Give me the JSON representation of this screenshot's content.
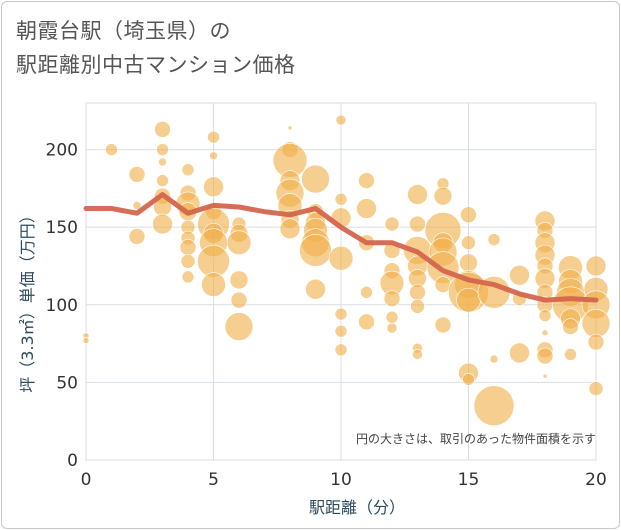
{
  "title_line1": "朝霞台駅（埼玉県）の",
  "title_line2": "駅距離別中古マンション価格",
  "chart_data": {
    "type": "scatter",
    "xlabel": "駅距離（分）",
    "ylabel": "坪（3.3㎡）単価（万円）",
    "xlim": [
      0,
      20
    ],
    "ylim": [
      0,
      230
    ],
    "xticks": [
      0,
      5,
      10,
      15,
      20
    ],
    "yticks": [
      0,
      50,
      100,
      150,
      200
    ],
    "grid": true,
    "note": "円の大きさは、取引のあった物件面積を示す",
    "colors": {
      "bubble": "#f0b04a",
      "line": "#d4654d",
      "grid": "#d8dde4"
    },
    "points": [
      {
        "x": 0,
        "y": 80,
        "s": 3
      },
      {
        "x": 0,
        "y": 77,
        "s": 3
      },
      {
        "x": 1,
        "y": 200,
        "s": 6
      },
      {
        "x": 2,
        "y": 184,
        "s": 8
      },
      {
        "x": 2,
        "y": 144,
        "s": 8
      },
      {
        "x": 2,
        "y": 164,
        "s": 4
      },
      {
        "x": 3,
        "y": 213,
        "s": 8
      },
      {
        "x": 3,
        "y": 200,
        "s": 6
      },
      {
        "x": 3,
        "y": 192,
        "s": 4
      },
      {
        "x": 3,
        "y": 180,
        "s": 6
      },
      {
        "x": 3,
        "y": 170,
        "s": 8
      },
      {
        "x": 3,
        "y": 163,
        "s": 9
      },
      {
        "x": 3,
        "y": 152,
        "s": 10
      },
      {
        "x": 4,
        "y": 187,
        "s": 6
      },
      {
        "x": 4,
        "y": 172,
        "s": 8
      },
      {
        "x": 4,
        "y": 165,
        "s": 12
      },
      {
        "x": 4,
        "y": 160,
        "s": 9
      },
      {
        "x": 4,
        "y": 150,
        "s": 7
      },
      {
        "x": 4,
        "y": 143,
        "s": 7
      },
      {
        "x": 4,
        "y": 137,
        "s": 8
      },
      {
        "x": 4,
        "y": 128,
        "s": 7
      },
      {
        "x": 4,
        "y": 118,
        "s": 6
      },
      {
        "x": 5,
        "y": 208,
        "s": 6
      },
      {
        "x": 5,
        "y": 196,
        "s": 4
      },
      {
        "x": 5,
        "y": 176,
        "s": 10
      },
      {
        "x": 5,
        "y": 160,
        "s": 8
      },
      {
        "x": 5,
        "y": 152,
        "s": 16
      },
      {
        "x": 5,
        "y": 146,
        "s": 10
      },
      {
        "x": 5,
        "y": 140,
        "s": 14
      },
      {
        "x": 5,
        "y": 128,
        "s": 16
      },
      {
        "x": 5,
        "y": 113,
        "s": 12
      },
      {
        "x": 6,
        "y": 152,
        "s": 7
      },
      {
        "x": 6,
        "y": 146,
        "s": 9
      },
      {
        "x": 6,
        "y": 140,
        "s": 12
      },
      {
        "x": 6,
        "y": 116,
        "s": 9
      },
      {
        "x": 6,
        "y": 103,
        "s": 8
      },
      {
        "x": 6,
        "y": 86,
        "s": 14
      },
      {
        "x": 8,
        "y": 214,
        "s": 2
      },
      {
        "x": 8,
        "y": 200,
        "s": 8
      },
      {
        "x": 8,
        "y": 193,
        "s": 17
      },
      {
        "x": 8,
        "y": 180,
        "s": 10
      },
      {
        "x": 8,
        "y": 172,
        "s": 14
      },
      {
        "x": 8,
        "y": 164,
        "s": 12
      },
      {
        "x": 8,
        "y": 155,
        "s": 9
      },
      {
        "x": 8,
        "y": 149,
        "s": 10
      },
      {
        "x": 9,
        "y": 181,
        "s": 14
      },
      {
        "x": 9,
        "y": 160,
        "s": 8
      },
      {
        "x": 9,
        "y": 153,
        "s": 10
      },
      {
        "x": 9,
        "y": 148,
        "s": 12
      },
      {
        "x": 9,
        "y": 140,
        "s": 14
      },
      {
        "x": 9,
        "y": 135,
        "s": 16
      },
      {
        "x": 9,
        "y": 110,
        "s": 10
      },
      {
        "x": 10,
        "y": 219,
        "s": 5
      },
      {
        "x": 10,
        "y": 168,
        "s": 6
      },
      {
        "x": 10,
        "y": 156,
        "s": 10
      },
      {
        "x": 10,
        "y": 130,
        "s": 12
      },
      {
        "x": 10,
        "y": 94,
        "s": 6
      },
      {
        "x": 10,
        "y": 83,
        "s": 6
      },
      {
        "x": 10,
        "y": 71,
        "s": 6
      },
      {
        "x": 11,
        "y": 180,
        "s": 8
      },
      {
        "x": 11,
        "y": 162,
        "s": 10
      },
      {
        "x": 11,
        "y": 140,
        "s": 8
      },
      {
        "x": 11,
        "y": 108,
        "s": 6
      },
      {
        "x": 11,
        "y": 89,
        "s": 8
      },
      {
        "x": 12,
        "y": 152,
        "s": 7
      },
      {
        "x": 12,
        "y": 135,
        "s": 8
      },
      {
        "x": 12,
        "y": 122,
        "s": 8
      },
      {
        "x": 12,
        "y": 114,
        "s": 12
      },
      {
        "x": 12,
        "y": 104,
        "s": 8
      },
      {
        "x": 12,
        "y": 92,
        "s": 6
      },
      {
        "x": 12,
        "y": 85,
        "s": 5
      },
      {
        "x": 13,
        "y": 171,
        "s": 10
      },
      {
        "x": 13,
        "y": 152,
        "s": 8
      },
      {
        "x": 13,
        "y": 135,
        "s": 14
      },
      {
        "x": 13,
        "y": 125,
        "s": 10
      },
      {
        "x": 13,
        "y": 117,
        "s": 9
      },
      {
        "x": 13,
        "y": 108,
        "s": 8
      },
      {
        "x": 13,
        "y": 99,
        "s": 7
      },
      {
        "x": 13,
        "y": 72,
        "s": 5
      },
      {
        "x": 13,
        "y": 68,
        "s": 5
      },
      {
        "x": 14,
        "y": 178,
        "s": 6
      },
      {
        "x": 14,
        "y": 170,
        "s": 9
      },
      {
        "x": 14,
        "y": 148,
        "s": 18
      },
      {
        "x": 14,
        "y": 140,
        "s": 10
      },
      {
        "x": 14,
        "y": 134,
        "s": 14
      },
      {
        "x": 14,
        "y": 124,
        "s": 16
      },
      {
        "x": 14,
        "y": 113,
        "s": 8
      },
      {
        "x": 14,
        "y": 87,
        "s": 8
      },
      {
        "x": 15,
        "y": 158,
        "s": 8
      },
      {
        "x": 15,
        "y": 140,
        "s": 7
      },
      {
        "x": 15,
        "y": 127,
        "s": 9
      },
      {
        "x": 15,
        "y": 113,
        "s": 14
      },
      {
        "x": 15,
        "y": 108,
        "s": 20
      },
      {
        "x": 15,
        "y": 103,
        "s": 12
      },
      {
        "x": 15,
        "y": 56,
        "s": 10
      },
      {
        "x": 15,
        "y": 52,
        "s": 6
      },
      {
        "x": 16,
        "y": 142,
        "s": 6
      },
      {
        "x": 16,
        "y": 108,
        "s": 16
      },
      {
        "x": 16,
        "y": 65,
        "s": 4
      },
      {
        "x": 16,
        "y": 35,
        "s": 20
      },
      {
        "x": 17,
        "y": 119,
        "s": 10
      },
      {
        "x": 17,
        "y": 104,
        "s": 7
      },
      {
        "x": 17,
        "y": 69,
        "s": 10
      },
      {
        "x": 18,
        "y": 154,
        "s": 10
      },
      {
        "x": 18,
        "y": 148,
        "s": 8
      },
      {
        "x": 18,
        "y": 140,
        "s": 10
      },
      {
        "x": 18,
        "y": 132,
        "s": 10
      },
      {
        "x": 18,
        "y": 125,
        "s": 8
      },
      {
        "x": 18,
        "y": 117,
        "s": 10
      },
      {
        "x": 18,
        "y": 108,
        "s": 8
      },
      {
        "x": 18,
        "y": 100,
        "s": 8
      },
      {
        "x": 18,
        "y": 93,
        "s": 6
      },
      {
        "x": 18,
        "y": 82,
        "s": 3
      },
      {
        "x": 18,
        "y": 71,
        "s": 8
      },
      {
        "x": 18,
        "y": 67,
        "s": 8
      },
      {
        "x": 18,
        "y": 54,
        "s": 2
      },
      {
        "x": 19,
        "y": 124,
        "s": 12
      },
      {
        "x": 19,
        "y": 115,
        "s": 12
      },
      {
        "x": 19,
        "y": 108,
        "s": 14
      },
      {
        "x": 19,
        "y": 100,
        "s": 18
      },
      {
        "x": 19,
        "y": 91,
        "s": 10
      },
      {
        "x": 19,
        "y": 86,
        "s": 8
      },
      {
        "x": 19,
        "y": 68,
        "s": 6
      },
      {
        "x": 20,
        "y": 125,
        "s": 10
      },
      {
        "x": 20,
        "y": 110,
        "s": 12
      },
      {
        "x": 20,
        "y": 100,
        "s": 14
      },
      {
        "x": 20,
        "y": 88,
        "s": 14
      },
      {
        "x": 20,
        "y": 76,
        "s": 8
      },
      {
        "x": 20,
        "y": 46,
        "s": 7
      }
    ],
    "line": [
      {
        "x": 0,
        "y": 162
      },
      {
        "x": 1,
        "y": 162
      },
      {
        "x": 2,
        "y": 159
      },
      {
        "x": 3,
        "y": 171
      },
      {
        "x": 4,
        "y": 159
      },
      {
        "x": 5,
        "y": 164
      },
      {
        "x": 6,
        "y": 163
      },
      {
        "x": 7,
        "y": 160
      },
      {
        "x": 8,
        "y": 158
      },
      {
        "x": 9,
        "y": 162
      },
      {
        "x": 10,
        "y": 150
      },
      {
        "x": 11,
        "y": 140
      },
      {
        "x": 12,
        "y": 140
      },
      {
        "x": 13,
        "y": 134
      },
      {
        "x": 14,
        "y": 122
      },
      {
        "x": 15,
        "y": 116
      },
      {
        "x": 16,
        "y": 113
      },
      {
        "x": 17,
        "y": 107
      },
      {
        "x": 18,
        "y": 103
      },
      {
        "x": 19,
        "y": 104
      },
      {
        "x": 20,
        "y": 103
      }
    ]
  }
}
